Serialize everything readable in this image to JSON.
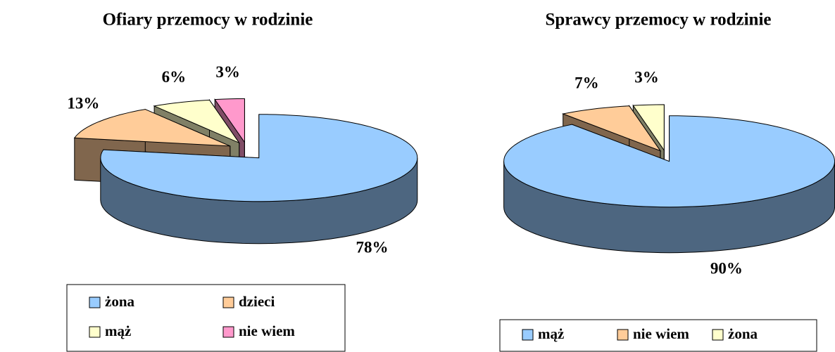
{
  "chart_data": [
    {
      "type": "pie3d",
      "title": "Ofiary przemocy w rodzinie",
      "categories": [
        "żona",
        "dzieci",
        "mąż",
        "nie wiem"
      ],
      "values": [
        78,
        13,
        6,
        3
      ],
      "value_labels": [
        "78%",
        "13%",
        "6%",
        "3%"
      ],
      "colors": [
        "#99ccff",
        "#ffcc99",
        "#ffffcc",
        "#ff99cc"
      ]
    },
    {
      "type": "pie3d",
      "title": "Sprawcy przemocy w rodzinie",
      "categories": [
        "mąż",
        "nie wiem",
        "żona"
      ],
      "values": [
        90,
        7,
        3
      ],
      "value_labels": [
        "90%",
        "7%",
        "3%"
      ],
      "colors": [
        "#99ccff",
        "#ffcc99",
        "#ffffcc"
      ]
    }
  ]
}
